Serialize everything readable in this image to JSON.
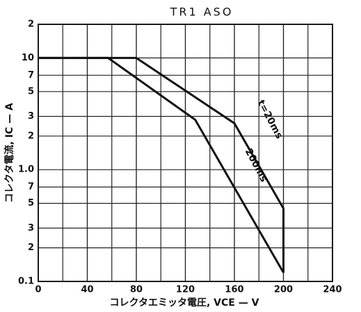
{
  "chart_data": {
    "type": "line",
    "title": "TR1 ASO",
    "x_label": "コレクタエミッタ電圧, VCE — V",
    "y_label": "コレクタ電流, IC — A",
    "log_y": true,
    "grid": true,
    "x_grid_step": 20,
    "xlim": [
      0,
      240
    ],
    "xticks": [
      0,
      40,
      80,
      120,
      160,
      200,
      240
    ],
    "ylim": [
      0.1,
      20
    ],
    "yticks": [
      0.1,
      {
        "value": 0.2,
        "label": "2"
      },
      {
        "value": 0.3,
        "label": "3"
      },
      {
        "value": 0.5,
        "label": "5"
      },
      {
        "value": 0.7,
        "label": "7"
      },
      {
        "value": 1,
        "label": "1.0"
      },
      2,
      3,
      5,
      7,
      10,
      {
        "value": 20,
        "label": "2"
      }
    ],
    "series": [
      {
        "name": "t=20ms",
        "color": "#111111",
        "x": [
          0,
          80,
          160,
          200,
          200
        ],
        "values": [
          10,
          10,
          2.6,
          0.45,
          0.12
        ]
      },
      {
        "name": "200ms",
        "color": "#111111",
        "x": [
          0,
          57,
          128,
          200
        ],
        "values": [
          10,
          10,
          2.8,
          0.12
        ]
      }
    ]
  }
}
